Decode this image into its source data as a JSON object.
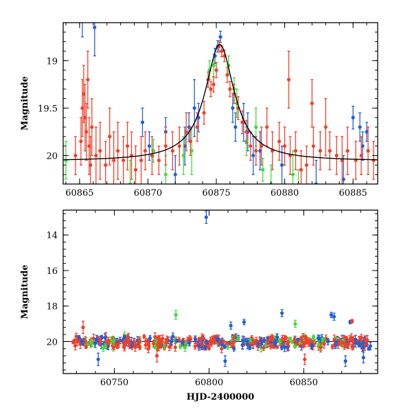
{
  "chart_data": [
    {
      "type": "scatter",
      "panel": "top",
      "xlabel": "",
      "ylabel": "Magnitude",
      "xlim": [
        60863.8,
        60886.8
      ],
      "ylim": [
        20.3,
        18.6
      ],
      "y_inverted": true,
      "x_ticks": [
        60865,
        60870,
        60875,
        60880,
        60885
      ],
      "y_ticks": [
        19,
        19.5,
        20
      ],
      "tick_labels_x": [
        "60865",
        "60870",
        "60875",
        "60880",
        "60885"
      ],
      "tick_labels_y": [
        "19",
        "19.5",
        "20"
      ],
      "grid": false,
      "colors": {
        "blue": "#1f5fd6",
        "green": "#3ddc3d",
        "red": "#f0402a"
      },
      "series": [
        {
          "color": "blue",
          "points": [
            [
              60865.2,
              18.55,
              0.2
            ],
            [
              60866.1,
              18.65,
              0.3
            ],
            [
              60869.6,
              19.65,
              0.15
            ],
            [
              60870.1,
              19.9,
              0.15
            ],
            [
              60871.3,
              19.75,
              0.15
            ],
            [
              60872.0,
              20.2,
              0.2
            ],
            [
              60872.7,
              19.9,
              0.2
            ],
            [
              60873.0,
              19.7,
              0.15
            ],
            [
              60873.4,
              19.5,
              0.3
            ],
            [
              60873.7,
              19.6,
              0.15
            ],
            [
              60874.9,
              18.95,
              0.08
            ],
            [
              60875.1,
              18.85,
              0.06
            ],
            [
              60875.3,
              18.75,
              0.06
            ],
            [
              60876.2,
              19.5,
              0.15
            ],
            [
              60876.4,
              19.7,
              0.15
            ],
            [
              60877.0,
              19.65,
              0.2
            ],
            [
              60877.3,
              19.75,
              0.2
            ],
            [
              60877.7,
              20.0,
              0.2
            ],
            [
              60878.2,
              19.95,
              0.2
            ],
            [
              60879.8,
              20.1,
              0.2
            ],
            [
              60882.3,
              20.3,
              0.25
            ],
            [
              60884.3,
              20.25,
              0.25
            ],
            [
              60885.0,
              19.6,
              0.12
            ],
            [
              60885.5,
              19.7,
              0.15
            ],
            [
              60885.7,
              19.9,
              0.15
            ],
            [
              60886.0,
              19.75,
              0.1
            ]
          ]
        },
        {
          "color": "green",
          "points": [
            [
              60864.0,
              20.05,
              0.2
            ],
            [
              60868.7,
              20.3,
              0.25
            ],
            [
              60870.4,
              19.95,
              0.12
            ],
            [
              60871.3,
              20.2,
              0.2
            ],
            [
              60872.6,
              20.0,
              0.2
            ],
            [
              60873.2,
              19.95,
              0.25
            ],
            [
              60874.5,
              19.1,
              0.1
            ],
            [
              60874.8,
              19.05,
              0.12
            ],
            [
              60875.9,
              19.05,
              0.1
            ],
            [
              60876.3,
              19.3,
              0.12
            ],
            [
              60876.5,
              19.45,
              0.15
            ],
            [
              60877.2,
              19.85,
              0.15
            ],
            [
              60877.9,
              19.7,
              0.2
            ],
            [
              60878.4,
              20.15,
              0.12
            ],
            [
              60879.0,
              20.3,
              0.2
            ],
            [
              60880.6,
              20.2,
              0.25
            ],
            [
              60881.0,
              20.35,
              0.2
            ]
          ]
        },
        {
          "color": "red",
          "points": [
            [
              60864.7,
              20.0,
              0.2
            ],
            [
              60865.1,
              19.85,
              0.25
            ],
            [
              60865.2,
              19.5,
              0.3
            ],
            [
              60865.3,
              19.35,
              0.3
            ],
            [
              60865.4,
              19.6,
              0.35
            ],
            [
              60865.5,
              19.75,
              0.3
            ],
            [
              60865.6,
              19.2,
              0.3
            ],
            [
              60865.7,
              19.9,
              0.3
            ],
            [
              60865.8,
              20.1,
              0.3
            ],
            [
              60865.9,
              19.7,
              0.3
            ],
            [
              60866.2,
              20.0,
              0.3
            ],
            [
              60866.5,
              19.95,
              0.3
            ],
            [
              60866.9,
              20.1,
              0.25
            ],
            [
              60867.2,
              19.8,
              0.3
            ],
            [
              60867.5,
              20.05,
              0.3
            ],
            [
              60867.8,
              19.95,
              0.3
            ],
            [
              60868.2,
              20.05,
              0.25
            ],
            [
              60868.5,
              19.9,
              0.25
            ],
            [
              60868.8,
              20.0,
              0.25
            ],
            [
              60869.1,
              20.15,
              0.25
            ],
            [
              60869.5,
              20.05,
              0.25
            ],
            [
              60869.8,
              19.95,
              0.2
            ],
            [
              60870.3,
              20.0,
              0.2
            ],
            [
              60870.8,
              20.05,
              0.15
            ],
            [
              60871.3,
              19.9,
              0.2
            ],
            [
              60871.8,
              19.95,
              0.2
            ],
            [
              60872.3,
              19.9,
              0.2
            ],
            [
              60872.8,
              19.75,
              0.2
            ],
            [
              60873.1,
              19.85,
              0.15
            ],
            [
              60873.6,
              19.7,
              0.15
            ],
            [
              60874.1,
              19.55,
              0.12
            ],
            [
              60874.4,
              19.2,
              0.08
            ],
            [
              60874.6,
              19.3,
              0.08
            ],
            [
              60874.8,
              19.25,
              0.08
            ],
            [
              60875.0,
              19.1,
              0.08
            ],
            [
              60875.2,
              18.85,
              0.06
            ],
            [
              60875.4,
              18.9,
              0.06
            ],
            [
              60875.6,
              18.95,
              0.06
            ],
            [
              60875.8,
              19.15,
              0.08
            ],
            [
              60876.0,
              19.3,
              0.08
            ],
            [
              60876.3,
              19.35,
              0.1
            ],
            [
              60876.6,
              19.5,
              0.12
            ],
            [
              60876.9,
              19.65,
              0.12
            ],
            [
              60877.2,
              19.75,
              0.12
            ],
            [
              60877.5,
              19.9,
              0.15
            ],
            [
              60877.9,
              19.95,
              0.15
            ],
            [
              60878.3,
              19.9,
              0.2
            ],
            [
              60878.7,
              19.7,
              0.2
            ],
            [
              60879.1,
              19.95,
              0.2
            ],
            [
              60879.6,
              19.85,
              0.2
            ],
            [
              60880.0,
              19.9,
              0.2
            ],
            [
              60880.4,
              20.0,
              0.2
            ],
            [
              60880.8,
              19.95,
              0.2
            ],
            [
              60881.2,
              20.15,
              0.2
            ],
            [
              60881.6,
              20.1,
              0.2
            ],
            [
              60882.1,
              19.9,
              0.2
            ],
            [
              60882.6,
              19.95,
              0.2
            ],
            [
              60883.0,
              19.7,
              0.3
            ],
            [
              60883.3,
              19.95,
              0.2
            ],
            [
              60883.8,
              20.0,
              0.2
            ],
            [
              60884.2,
              20.05,
              0.25
            ],
            [
              60884.6,
              19.95,
              0.25
            ],
            [
              60885.2,
              20.05,
              0.2
            ],
            [
              60885.6,
              20.0,
              0.2
            ],
            [
              60886.1,
              19.95,
              0.25
            ],
            [
              60886.5,
              20.05,
              0.2
            ],
            [
              60880.3,
              19.2,
              0.3
            ],
            [
              60882.0,
              19.45,
              0.25
            ]
          ]
        }
      ],
      "model_curve": {
        "peak_x": 60875.25,
        "peak_mag": 18.83,
        "baseline_mag": 20.06,
        "width": 1.3
      }
    },
    {
      "type": "scatter",
      "panel": "bottom",
      "xlabel": "HJD-2400000",
      "ylabel": "Magnitude",
      "xlim": [
        60723,
        60889
      ],
      "ylim": [
        21.8,
        12.6
      ],
      "y_inverted": true,
      "x_ticks": [
        60750,
        60800,
        60850
      ],
      "y_ticks": [
        14,
        16,
        18,
        20
      ],
      "tick_labels_x": [
        "60750",
        "60800",
        "60850"
      ],
      "tick_labels_y": [
        "14",
        "16",
        "18",
        "20"
      ],
      "reference_line_mag": 20.0,
      "grid": false,
      "colors": {
        "blue": "#1f5fd6",
        "green": "#3ddc3d",
        "red": "#f0402a"
      },
      "outliers": [
        {
          "color": "blue",
          "x": 60798.5,
          "y": 13.0,
          "err": 0.35
        },
        {
          "color": "red",
          "x": 60733.5,
          "y": 19.2,
          "err": 0.35
        },
        {
          "color": "green",
          "x": 60782.5,
          "y": 18.5,
          "err": 0.25
        },
        {
          "color": "blue",
          "x": 60838.5,
          "y": 18.4,
          "err": 0.2
        },
        {
          "color": "blue",
          "x": 60818.5,
          "y": 18.9,
          "err": 0.15
        },
        {
          "color": "blue",
          "x": 60811.5,
          "y": 19.1,
          "err": 0.2
        },
        {
          "color": "blue",
          "x": 60864.5,
          "y": 18.5,
          "err": 0.15
        },
        {
          "color": "blue",
          "x": 60866.0,
          "y": 18.6,
          "err": 0.2
        },
        {
          "color": "green",
          "x": 60845.5,
          "y": 19.0,
          "err": 0.2
        },
        {
          "color": "blue",
          "x": 60874.5,
          "y": 18.9,
          "err": 0.1
        },
        {
          "color": "red",
          "x": 60875.5,
          "y": 18.85,
          "err": 0.1
        },
        {
          "color": "blue",
          "x": 60741.5,
          "y": 21.0,
          "err": 0.35
        },
        {
          "color": "red",
          "x": 60772.5,
          "y": 20.8,
          "err": 0.35
        },
        {
          "color": "blue",
          "x": 60808.5,
          "y": 21.1,
          "err": 0.3
        },
        {
          "color": "red",
          "x": 60850.5,
          "y": 21.0,
          "err": 0.3
        },
        {
          "color": "blue",
          "x": 60872.0,
          "y": 21.1,
          "err": 0.3
        },
        {
          "color": "blue",
          "x": 60881.5,
          "y": 20.9,
          "err": 0.3
        }
      ],
      "cloud": {
        "x_start": 60728,
        "x_end": 60886,
        "center_mag": 20.05,
        "spread_mag": 0.25
      }
    }
  ]
}
